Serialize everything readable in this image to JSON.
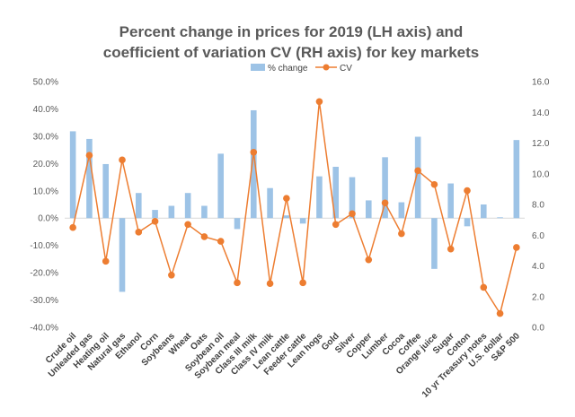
{
  "chart_data": {
    "type": "bar",
    "title_lines": [
      "Percent change in prices for 2019 (LH axis) and",
      "coefficient of variation CV (RH axis) for key markets"
    ],
    "categories": [
      "Crude oil",
      "Unleaded gas",
      "Heating oil",
      "Natural gas",
      "Ethanol",
      "Corn",
      "Soybeans",
      "Wheat",
      "Oats",
      "Soybean oil",
      "Soybean meal",
      "Class III milk",
      "Class IV milk",
      "Lean cattle",
      "Feeder cattle",
      "Lean hogs",
      "Gold",
      "Silver",
      "Copper",
      "Lumber",
      "Cocoa",
      "Coffee",
      "Orange juice",
      "Sugar",
      "Cotton",
      "10 yr Treasury notes",
      "U.S. dollar",
      "S&P 500"
    ],
    "series": [
      {
        "name": "% change",
        "type": "bar",
        "axis": "left",
        "color": "#9dc3e6",
        "values": [
          31.8,
          29.0,
          19.8,
          -27.0,
          9.2,
          3.0,
          4.5,
          9.2,
          4.5,
          23.6,
          -4.0,
          39.5,
          11.0,
          1.0,
          -2.0,
          15.3,
          18.8,
          15.0,
          6.5,
          22.3,
          5.8,
          29.8,
          -18.6,
          12.7,
          -3.0,
          5.0,
          0.3,
          28.6
        ]
      },
      {
        "name": "CV",
        "type": "line",
        "axis": "right",
        "color": "#ed7d31",
        "values": [
          6.5,
          11.2,
          4.3,
          10.9,
          6.2,
          6.9,
          3.4,
          6.7,
          5.9,
          5.6,
          2.9,
          11.4,
          2.85,
          8.4,
          2.9,
          14.7,
          6.7,
          7.4,
          4.4,
          8.1,
          6.1,
          10.2,
          9.3,
          5.1,
          8.9,
          2.6,
          0.9,
          5.2
        ]
      }
    ],
    "y_left": {
      "min": -40,
      "max": 50,
      "step": 10,
      "tick_labels": [
        "-40.0%",
        "-30.0%",
        "-20.0%",
        "-10.0%",
        "0.0%",
        "10.0%",
        "20.0%",
        "30.0%",
        "40.0%",
        "50.0%"
      ]
    },
    "y_right": {
      "min": 0,
      "max": 16,
      "step": 2,
      "tick_labels": [
        "0.0",
        "2.0",
        "4.0",
        "6.0",
        "8.0",
        "10.0",
        "12.0",
        "14.0",
        "16.0"
      ]
    },
    "grid": false,
    "legend_position": "top-center",
    "axis_color": "#d9d9d9"
  }
}
